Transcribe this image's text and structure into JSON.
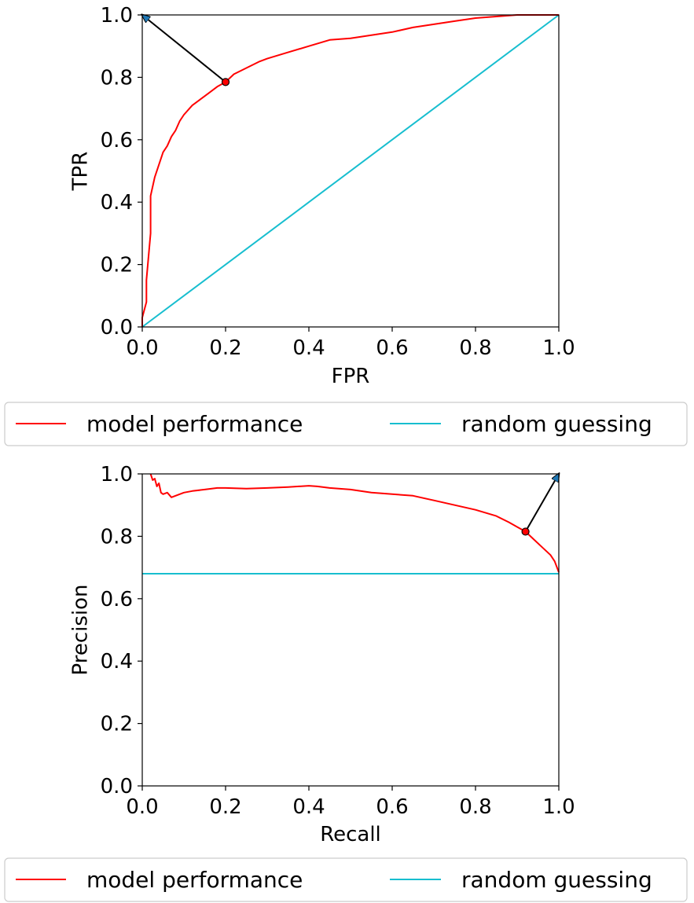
{
  "chart_data": [
    {
      "type": "line",
      "xlabel": "FPR",
      "ylabel": "TPR",
      "xlim": [
        0,
        1
      ],
      "ylim": [
        0,
        1
      ],
      "x_ticks": [
        "0.0",
        "0.2",
        "0.4",
        "0.6",
        "0.8",
        "1.0"
      ],
      "y_ticks": [
        "0.0",
        "0.2",
        "0.4",
        "0.6",
        "0.8",
        "1.0"
      ],
      "grid": false,
      "legend": {
        "placement": "below",
        "entries": [
          "model performance",
          "random guessing"
        ]
      },
      "series": [
        {
          "name": "model performance",
          "color": "#ff0000",
          "x": [
            0,
            0,
            0.01,
            0.01,
            0.02,
            0.02,
            0.03,
            0.04,
            0.05,
            0.06,
            0.07,
            0.08,
            0.09,
            0.1,
            0.12,
            0.14,
            0.16,
            0.18,
            0.2,
            0.22,
            0.25,
            0.28,
            0.3,
            0.35,
            0.4,
            0.45,
            0.5,
            0.55,
            0.6,
            0.65,
            0.7,
            0.75,
            0.8,
            0.85,
            0.9,
            0.95,
            1.0
          ],
          "y": [
            0,
            0.03,
            0.08,
            0.15,
            0.3,
            0.42,
            0.48,
            0.52,
            0.56,
            0.58,
            0.61,
            0.63,
            0.66,
            0.68,
            0.71,
            0.73,
            0.75,
            0.77,
            0.785,
            0.81,
            0.83,
            0.85,
            0.86,
            0.88,
            0.9,
            0.92,
            0.925,
            0.935,
            0.945,
            0.96,
            0.97,
            0.98,
            0.99,
            0.995,
            1.0,
            1.0,
            1.0
          ]
        },
        {
          "name": "random guessing",
          "color": "#17becf",
          "x": [
            0,
            1
          ],
          "y": [
            0,
            1
          ]
        }
      ],
      "annotation": {
        "type": "arrow",
        "from": [
          0.2,
          0.785
        ],
        "to": [
          0,
          1
        ]
      }
    },
    {
      "type": "line",
      "xlabel": "Recall",
      "ylabel": "Precision",
      "xlim": [
        0,
        1
      ],
      "ylim": [
        0,
        1
      ],
      "x_ticks": [
        "0.0",
        "0.2",
        "0.4",
        "0.6",
        "0.8",
        "1.0"
      ],
      "y_ticks": [
        "0.0",
        "0.2",
        "0.4",
        "0.6",
        "0.8",
        "1.0"
      ],
      "grid": false,
      "legend": {
        "placement": "below",
        "entries": [
          "model performance",
          "random guessing"
        ]
      },
      "series": [
        {
          "name": "model performance",
          "color": "#ff0000",
          "x": [
            0.02,
            0.025,
            0.03,
            0.035,
            0.04,
            0.045,
            0.05,
            0.06,
            0.07,
            0.08,
            0.1,
            0.12,
            0.15,
            0.18,
            0.2,
            0.25,
            0.3,
            0.35,
            0.4,
            0.42,
            0.45,
            0.5,
            0.55,
            0.6,
            0.65,
            0.7,
            0.75,
            0.8,
            0.85,
            0.88,
            0.9,
            0.92,
            0.94,
            0.96,
            0.98,
            0.99,
            1.0
          ],
          "y": [
            1.0,
            0.98,
            0.985,
            0.96,
            0.97,
            0.94,
            0.935,
            0.94,
            0.925,
            0.93,
            0.94,
            0.945,
            0.95,
            0.955,
            0.955,
            0.953,
            0.955,
            0.958,
            0.962,
            0.96,
            0.955,
            0.95,
            0.94,
            0.935,
            0.93,
            0.915,
            0.9,
            0.885,
            0.865,
            0.845,
            0.83,
            0.815,
            0.79,
            0.765,
            0.74,
            0.72,
            0.685
          ]
        },
        {
          "name": "random guessing",
          "color": "#17becf",
          "x": [
            0,
            1
          ],
          "y": [
            0.68,
            0.68
          ]
        }
      ],
      "annotation": {
        "type": "arrow",
        "from": [
          0.92,
          0.815
        ],
        "to": [
          1,
          1
        ]
      }
    }
  ]
}
